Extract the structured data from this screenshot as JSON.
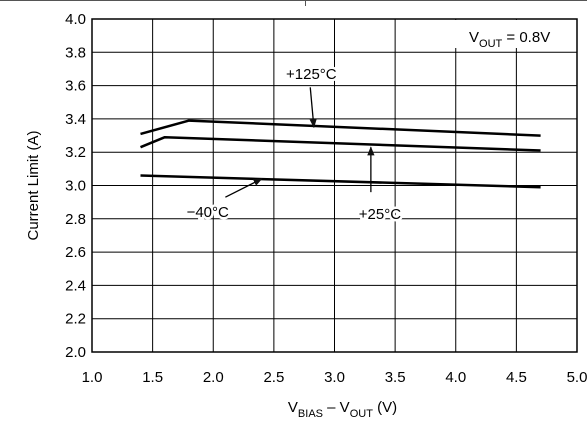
{
  "chart_data": {
    "type": "line",
    "title": "",
    "xlabel": {
      "main": "V",
      "sub1": "BIAS",
      "mid": " – V",
      "sub2": "OUT",
      "tail": " (V)"
    },
    "ylabel": "Current Limit (A)",
    "xlim": [
      1.0,
      5.0
    ],
    "ylim": [
      2.0,
      4.0
    ],
    "x_ticks": [
      1.0,
      1.5,
      2.0,
      2.5,
      3.0,
      3.5,
      4.0,
      4.5,
      5.0
    ],
    "x_tick_labels": [
      "1.0",
      "1.5",
      "2.0",
      "2.5",
      "3.0",
      "3.5",
      "4.0",
      "4.5",
      "5.0"
    ],
    "y_ticks": [
      2.0,
      2.2,
      2.4,
      2.6,
      2.8,
      3.0,
      3.2,
      3.4,
      3.6,
      3.8,
      4.0
    ],
    "y_tick_labels": [
      "2.0",
      "2.2",
      "2.4",
      "2.6",
      "2.8",
      "3.0",
      "3.2",
      "3.4",
      "3.6",
      "3.8",
      "4.0"
    ],
    "grid": true,
    "legend_box": {
      "main": "V",
      "sub": "OUT",
      "tail": " = 0.8V",
      "placement": "top-right"
    },
    "series": [
      {
        "key": "hot",
        "x": [
          1.4,
          1.8,
          4.7
        ],
        "y": [
          3.31,
          3.39,
          3.3
        ]
      },
      {
        "key": "room",
        "x": [
          1.4,
          1.6,
          4.7
        ],
        "y": [
          3.23,
          3.29,
          3.21
        ]
      },
      {
        "key": "cold",
        "x": [
          1.4,
          4.7
        ],
        "y": [
          3.06,
          2.99
        ]
      }
    ],
    "annotations": [
      {
        "series": "hot",
        "text": "+125°C",
        "arrow_from": [
          2.8,
          3.59
        ],
        "arrow_to": [
          2.83,
          3.35
        ],
        "text_at": [
          2.6,
          3.67
        ]
      },
      {
        "series": "room",
        "text": "+25°C",
        "arrow_from": [
          3.3,
          2.96
        ],
        "arrow_to": [
          3.3,
          3.23
        ],
        "text_at": [
          3.2,
          2.83
        ]
      },
      {
        "series": "cold",
        "text": "−40°C",
        "arrow_from": [
          2.1,
          2.93
        ],
        "arrow_to": [
          2.4,
          3.04
        ],
        "text_at": [
          1.78,
          2.84
        ]
      }
    ]
  }
}
